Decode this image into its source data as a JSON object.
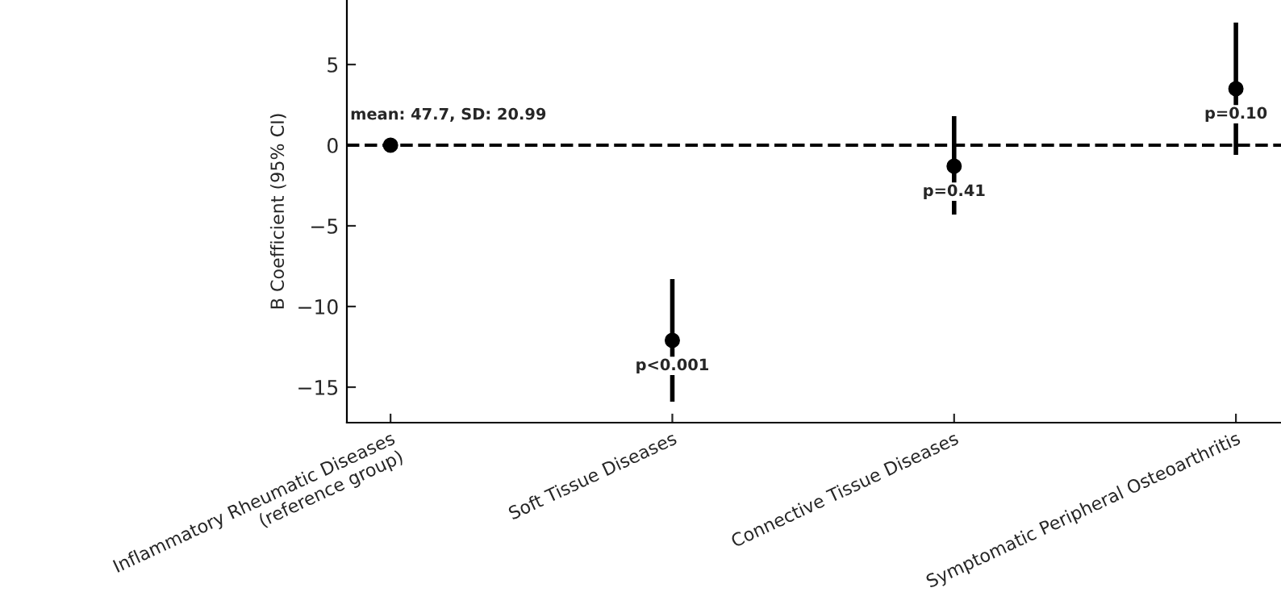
{
  "chart_data": {
    "type": "scatter",
    "ylabel": "B Coefficient (95% CI)",
    "categories": [
      "Inflammatory Rheumatic Diseases\n(reference group)",
      "Soft Tissue Diseases",
      "Connective Tissue Diseases",
      "Symptomatic Peripheral Osteoarthritis"
    ],
    "series": [
      {
        "color": "#000000",
        "values": [
          0,
          -12.1,
          -1.3,
          3.5
        ],
        "errors": [
          null,
          [
            -15.9,
            -8.3
          ],
          [
            -4.3,
            1.8
          ],
          [
            -0.6,
            7.6
          ]
        ]
      }
    ],
    "marker": "circle",
    "ylim": [
      -17.2,
      9
    ],
    "yticks": [
      {
        "value": -15,
        "label": "−15"
      },
      {
        "value": -10,
        "label": "−10"
      },
      {
        "value": -5,
        "label": "−5"
      },
      0,
      5
    ],
    "ref_lines": [
      {
        "axis": "y",
        "value": 0,
        "color": "#000000",
        "line_style": "dashed"
      }
    ],
    "annotations": [
      {
        "text": "mean: 47.7, SD: 20.99",
        "x": "Inflammatory Rheumatic Diseases\n(reference group)",
        "y": 0
      },
      {
        "text": "p<0.001",
        "x": "Soft Tissue Diseases",
        "y": -12.1
      },
      {
        "text": "p=0.41",
        "x": "Connective Tissue Diseases",
        "y": -1.3
      },
      {
        "text": "p=0.10",
        "x": "Symptomatic Peripheral Osteoarthritis",
        "y": 3.5
      }
    ],
    "grid": false,
    "legend": false
  }
}
